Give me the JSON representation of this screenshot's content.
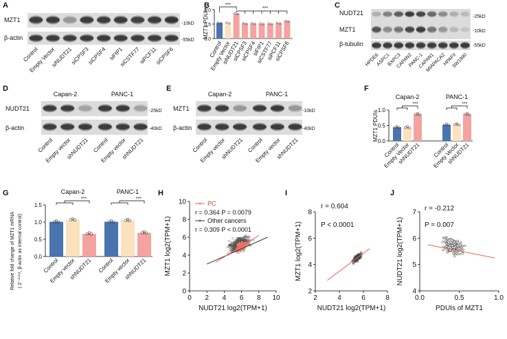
{
  "figure": {
    "panels": [
      "A",
      "B",
      "C",
      "D",
      "E",
      "F",
      "G",
      "H",
      "I",
      "J"
    ]
  },
  "panelA": {
    "blot_labels": [
      "MZT1",
      "β-actin"
    ],
    "markers": [
      "-10kD",
      "-55kD"
    ],
    "lanes": [
      "Control",
      "Empty Vector",
      "siNUDT21",
      "siCPSF3",
      "siCPSF4",
      "siFIP1",
      "siCSTF77",
      "siPCF11",
      "siCPSF6"
    ],
    "mzt1_intensity": [
      0.85,
      0.85,
      0.45,
      0.85,
      0.85,
      0.85,
      0.82,
      0.85,
      0.88
    ],
    "actin_intensity": [
      0.85,
      0.85,
      0.85,
      0.85,
      0.85,
      0.85,
      0.85,
      0.85,
      0.85
    ]
  },
  "panelC": {
    "blot_labels": [
      "NUDT21",
      "MZT1",
      "β-tubulin"
    ],
    "markers": [
      "-25kD",
      "-10kD",
      "-55kD"
    ],
    "lanes": [
      "HPDE6",
      "ASPC1",
      "BXPC3",
      "CAPAN2",
      "PANC-1",
      "CAPAN1",
      "MIAPACA2",
      "HPAFII",
      "SW1990"
    ],
    "nudt21_intensity": [
      0.35,
      0.55,
      0.7,
      0.85,
      0.8,
      0.65,
      0.5,
      0.35,
      0.3
    ],
    "mzt1_intensity": [
      0.75,
      0.5,
      0.6,
      0.8,
      0.85,
      0.6,
      0.45,
      0.3,
      0.25
    ],
    "tubulin_intensity": [
      0.85,
      0.85,
      0.85,
      0.85,
      0.85,
      0.85,
      0.85,
      0.85,
      0.85
    ]
  },
  "panelD": {
    "groups": [
      "Capan-2",
      "PANC-1"
    ],
    "blot_labels": [
      "NUDT21",
      "β-actin"
    ],
    "markers": [
      "-25kD",
      "-40kD"
    ],
    "lanes": [
      "Control",
      "Empty vector",
      "shNUDT21",
      "Control",
      "Empty vector",
      "shNUDT21"
    ],
    "nudt21_intensity": [
      0.85,
      0.85,
      0.4,
      0.85,
      0.85,
      0.4
    ],
    "actin_intensity": [
      0.85,
      0.85,
      0.85,
      0.85,
      0.85,
      0.85
    ]
  },
  "panelE": {
    "groups": [
      "Capan-2",
      "PANC-1"
    ],
    "blot_labels": [
      "MZT1",
      "β-actin"
    ],
    "markers": [
      "-10kD",
      "-40kD"
    ],
    "lanes": [
      "Control",
      "Empty vector",
      "shNUDT21",
      "Control",
      "Empty vector",
      "shNUDT21"
    ],
    "mzt1_intensity": [
      0.85,
      0.85,
      0.45,
      0.85,
      0.85,
      0.45
    ],
    "actin_intensity": [
      0.85,
      0.85,
      0.85,
      0.85,
      0.85,
      0.85
    ]
  },
  "chart_data": [
    {
      "id": "B",
      "type": "bar",
      "ylabel": "MZT1 PDUIs",
      "ylim": [
        0,
        1.0
      ],
      "yticks": [
        0.0,
        0.5,
        1.0
      ],
      "categories": [
        "Control",
        "Empty Vector",
        "siNUDT21",
        "siCPSF3",
        "siCPSF4",
        "siFIP1",
        "siCSTF77",
        "siPCF11",
        "siCPSF6"
      ],
      "values": [
        0.54,
        0.54,
        0.86,
        0.52,
        0.52,
        0.51,
        0.51,
        0.53,
        0.6
      ],
      "colors": [
        "#4a74b0",
        "#fbe2bd",
        "#f4a3a1",
        "#f4a3a1",
        "#f4a3a1",
        "#f4a3a1",
        "#f4a3a1",
        "#f4a3a1",
        "#f4a3a1"
      ],
      "significance": [
        "***",
        "***"
      ]
    },
    {
      "id": "F",
      "type": "bar",
      "ylabel": "MZT1 PDUIs",
      "ylim": [
        0,
        1.0
      ],
      "yticks": [
        0.0,
        0.5,
        1.0
      ],
      "groups": [
        "Capan-2",
        "PANC-1"
      ],
      "categories": [
        "Control",
        "Empty Vector",
        "shNUDT21"
      ],
      "series_values": [
        [
          0.44,
          0.43,
          0.86
        ],
        [
          0.52,
          0.53,
          0.86
        ]
      ],
      "colors": [
        "#4a74b0",
        "#fbe2bd",
        "#f4a3a1"
      ],
      "significance": [
        "***",
        "***"
      ]
    },
    {
      "id": "G",
      "type": "bar",
      "ylabel_lines": [
        "Relative fold change of MZT1 mRNA",
        "( 2⁻ᐞᐞᶜᵗ, β-actin as internal control)"
      ],
      "ylim": [
        0,
        1.5
      ],
      "yticks": [
        0.0,
        0.5,
        1.0,
        1.5
      ],
      "groups": [
        "Capan-2",
        "PANC-1"
      ],
      "categories": [
        "Control",
        "Empty vector",
        "shNUDT21"
      ],
      "series_values": [
        [
          1.01,
          1.07,
          0.66
        ],
        [
          1.01,
          1.05,
          0.69
        ]
      ],
      "colors": [
        "#4a74b0",
        "#fbe2bd",
        "#f4a3a1"
      ],
      "significance": [
        "***",
        "***"
      ]
    },
    {
      "id": "H",
      "type": "scatter",
      "xlabel": "NUDT21 log2(TPM+1)",
      "ylabel": "MZT1 log2(TPM+1)",
      "xlim": [
        0,
        10
      ],
      "ylim": [
        0,
        10
      ],
      "xticks": [
        0,
        2,
        4,
        6,
        8,
        10
      ],
      "yticks": [
        0,
        2,
        4,
        6,
        8,
        10
      ],
      "legend": [
        "PC",
        "Other cancers"
      ],
      "stats": [
        "r = 0.364 P = 0.0079",
        "r = 0.309 P < 0.0001"
      ],
      "fit_pc": [
        [
          3.0,
          3.2
        ],
        [
          8.0,
          6.2
        ]
      ],
      "fit_other": [
        [
          2.0,
          3.0
        ],
        [
          9.0,
          6.0
        ]
      ]
    },
    {
      "id": "I",
      "type": "scatter",
      "xlabel": "NUDT21 log2(TPM+1)",
      "ylabel": "MZT1 log2(TPM+1)",
      "xlim": [
        2,
        8
      ],
      "ylim": [
        2,
        8
      ],
      "xticks": [
        2,
        4,
        6,
        8
      ],
      "yticks": [
        2,
        4,
        6,
        8
      ],
      "stats": [
        "r = 0.604",
        "P < 0.0001"
      ],
      "fit": [
        [
          3.0,
          2.8
        ],
        [
          6.5,
          5.2
        ]
      ]
    },
    {
      "id": "J",
      "type": "scatter",
      "xlabel": "PDUIs of MZT1",
      "ylabel": "NUDT21 log2(TPM+1)",
      "xlim": [
        0,
        1.0
      ],
      "ylim": [
        4,
        7
      ],
      "xticks": [
        0.0,
        0.5,
        1.0
      ],
      "yticks": [
        4,
        5,
        6,
        7
      ],
      "stats": [
        "r = -0.212",
        "P = 0.007"
      ],
      "fit": [
        [
          0.1,
          5.75
        ],
        [
          0.95,
          5.25
        ]
      ]
    }
  ]
}
